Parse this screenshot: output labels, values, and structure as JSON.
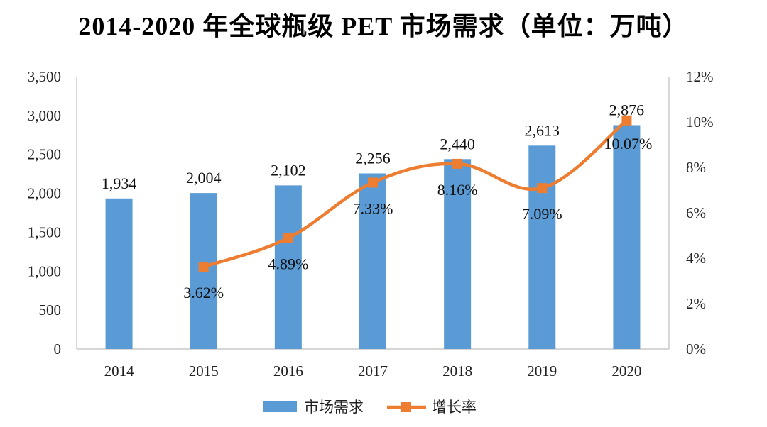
{
  "chart_data": {
    "type": "bar",
    "title": "2014-2020 年全球瓶级 PET 市场需求（单位：万吨）",
    "categories": [
      "2014",
      "2015",
      "2016",
      "2017",
      "2018",
      "2019",
      "2020"
    ],
    "series": [
      {
        "name": "市场需求",
        "type": "bar",
        "axis": "left",
        "color": "#5b9bd5",
        "values": [
          1934,
          2004,
          2102,
          2256,
          2440,
          2613,
          2876
        ],
        "labels": [
          "1,934",
          "2,004",
          "2,102",
          "2,256",
          "2,440",
          "2,613",
          "2,876"
        ]
      },
      {
        "name": "增长率",
        "type": "line",
        "axis": "right",
        "color": "#ed7d31",
        "values": [
          null,
          3.62,
          4.89,
          7.33,
          8.16,
          7.09,
          10.07
        ],
        "labels": [
          "",
          "3.62%",
          "4.89%",
          "7.33%",
          "8.16%",
          "7.09%",
          "10.07%"
        ]
      }
    ],
    "y_left": {
      "min": 0,
      "max": 3500,
      "ticks": [
        "0",
        "500",
        "1,000",
        "1,500",
        "2,000",
        "2,500",
        "3,000",
        "3,500"
      ]
    },
    "y_right": {
      "min": 0,
      "max": 12,
      "ticks": [
        "0%",
        "2%",
        "4%",
        "6%",
        "8%",
        "10%",
        "12%"
      ]
    },
    "legend_position": "bottom"
  }
}
